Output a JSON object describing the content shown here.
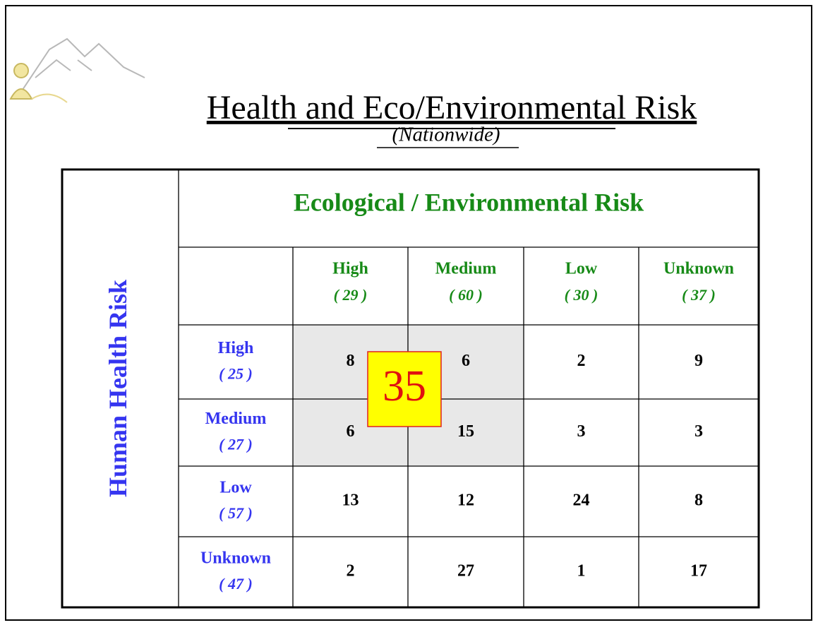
{
  "header": {
    "title": "Health and Eco/Environmental Risk",
    "subtitle": "(Nationwide)"
  },
  "table": {
    "row_axis_label": "Human Health Risk",
    "column_axis_label": "Ecological / Environmental Risk",
    "columns": [
      {
        "name": "High",
        "count": "( 29 )"
      },
      {
        "name": "Medium",
        "count": "( 60 )"
      },
      {
        "name": "Low",
        "count": "( 30 )"
      },
      {
        "name": "Unknown",
        "count": "( 37 )"
      }
    ],
    "rows": [
      {
        "name": "High",
        "count": "( 25 )",
        "cells": [
          8,
          6,
          2,
          9
        ]
      },
      {
        "name": "Medium",
        "count": "( 27 )",
        "cells": [
          6,
          15,
          3,
          3
        ]
      },
      {
        "name": "Low",
        "count": "( 57 )",
        "cells": [
          13,
          12,
          24,
          8
        ]
      },
      {
        "name": "Unknown",
        "count": "( 47 )",
        "cells": [
          2,
          27,
          1,
          17
        ]
      }
    ],
    "callout": 35
  }
}
